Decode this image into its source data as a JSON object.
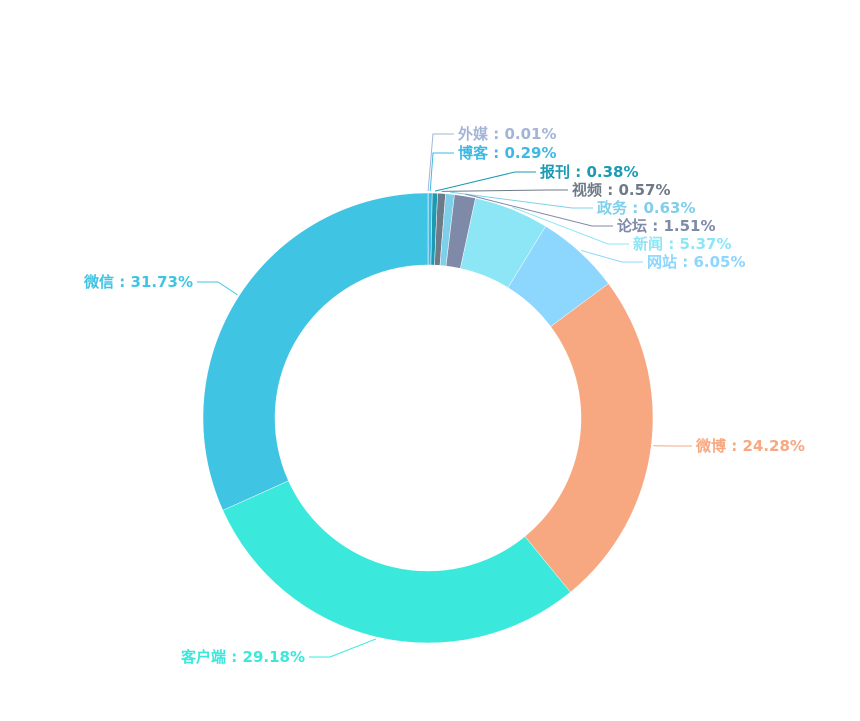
{
  "chart_data": {
    "type": "pie",
    "categories": [
      "外媒",
      "博客",
      "报刊",
      "视频",
      "政务",
      "论坛",
      "新闻",
      "网站",
      "微博",
      "客户端",
      "微信"
    ],
    "values": [
      0.01,
      0.29,
      0.38,
      0.57,
      0.63,
      1.51,
      5.37,
      6.05,
      24.28,
      29.18,
      31.73
    ],
    "value_labels": [
      "0.01%",
      "0.29%",
      "0.38%",
      "0.57%",
      "0.63%",
      "1.51%",
      "5.37%",
      "6.05%",
      "24.28%",
      "29.18%",
      "31.73%"
    ],
    "label_separator": " : ",
    "colors": [
      "#a3b5d6",
      "#3db9e3",
      "#1a9bb3",
      "#6e7a88",
      "#7ed0ea",
      "#7e8aa8",
      "#8de6f6",
      "#8dd6fe",
      "#f7a880",
      "#3ae8dc",
      "#40c4e3"
    ]
  }
}
